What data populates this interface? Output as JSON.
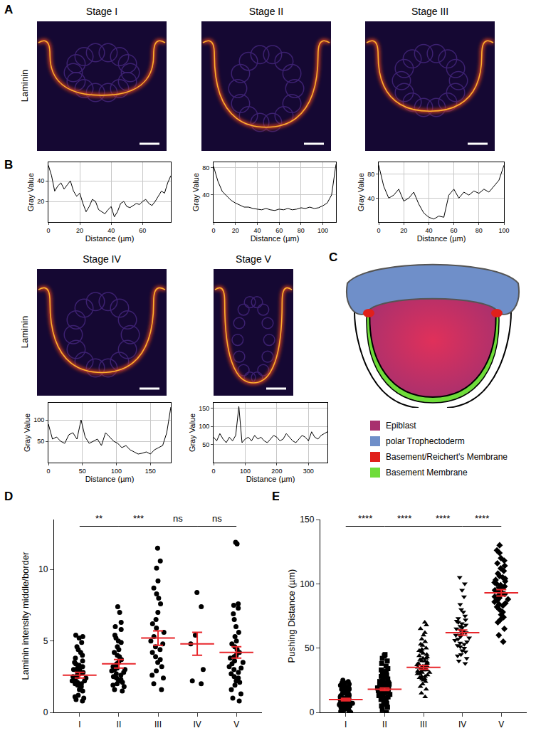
{
  "panel_labels": [
    "A",
    "B",
    "C",
    "D",
    "E"
  ],
  "stain_label": "Laminin",
  "images": [
    {
      "title": "Stage I"
    },
    {
      "title": "Stage II"
    },
    {
      "title": "Stage III"
    },
    {
      "title": "Stage IV"
    },
    {
      "title": "Stage V"
    }
  ],
  "schematic": {
    "legend": [
      {
        "label": "Epiblast",
        "color": "#a8306e"
      },
      {
        "label": "polar Trophectoderm",
        "color": "#6f8fc9"
      },
      {
        "label": "Basement/Reichert's Membrane",
        "color": "#e0201b"
      },
      {
        "label": "Basement Membrane",
        "color": "#6fdc3a"
      }
    ]
  },
  "chart_data": [
    {
      "type": "line",
      "xlabel": "Distance (µm)",
      "ylabel": "Gray Value",
      "color": "#000000",
      "grid": true,
      "x": [
        0,
        2,
        4,
        6,
        8,
        10,
        12,
        14,
        16,
        18,
        20,
        22,
        24,
        26,
        28,
        30,
        32,
        34,
        36,
        38,
        40,
        42,
        44,
        46,
        48,
        50,
        52,
        54,
        56,
        58,
        60,
        62,
        64,
        66,
        68,
        70,
        72,
        74,
        76,
        78
      ],
      "values": [
        55,
        45,
        30,
        35,
        38,
        32,
        36,
        40,
        30,
        25,
        28,
        18,
        10,
        15,
        22,
        20,
        12,
        10,
        8,
        12,
        15,
        5,
        10,
        18,
        20,
        15,
        14,
        16,
        18,
        17,
        20,
        22,
        18,
        16,
        20,
        25,
        30,
        28,
        38,
        45
      ],
      "xlim": [
        0,
        78
      ],
      "xticks": [
        0,
        20,
        40,
        60
      ],
      "ylim": [
        0,
        58
      ],
      "yticks": [
        20,
        40
      ]
    },
    {
      "type": "line",
      "xlabel": "Distance (µm)",
      "ylabel": "Gray Value",
      "color": "#000000",
      "grid": true,
      "x": [
        0,
        4,
        8,
        12,
        16,
        20,
        24,
        28,
        32,
        36,
        40,
        44,
        48,
        52,
        56,
        60,
        64,
        68,
        72,
        76,
        80,
        84,
        88,
        92,
        96,
        100,
        104,
        108,
        112
      ],
      "values": [
        82,
        60,
        45,
        38,
        32,
        28,
        25,
        22,
        22,
        20,
        19,
        18,
        20,
        18,
        17,
        19,
        18,
        20,
        18,
        19,
        21,
        20,
        22,
        20,
        21,
        24,
        28,
        40,
        85
      ],
      "xlim": [
        0,
        112
      ],
      "xticks": [
        0,
        20,
        40,
        60,
        80,
        100
      ],
      "ylim": [
        0,
        88
      ],
      "yticks": [
        40,
        80
      ]
    },
    {
      "type": "line",
      "xlabel": "Distance (µm)",
      "ylabel": "Gray Value",
      "color": "#000000",
      "grid": true,
      "x": [
        0,
        4,
        8,
        12,
        16,
        20,
        24,
        28,
        32,
        36,
        40,
        44,
        48,
        52,
        56,
        60,
        64,
        68,
        72,
        76,
        80,
        84,
        88,
        92,
        96,
        100
      ],
      "values": [
        95,
        60,
        40,
        45,
        55,
        35,
        40,
        50,
        30,
        15,
        8,
        5,
        10,
        8,
        45,
        55,
        40,
        50,
        45,
        52,
        48,
        55,
        50,
        60,
        70,
        95
      ],
      "xlim": [
        0,
        100
      ],
      "xticks": [
        0,
        20,
        40,
        60,
        80,
        100
      ],
      "ylim": [
        0,
        100
      ],
      "yticks": [
        40,
        80
      ]
    },
    {
      "type": "line",
      "xlabel": "Distance (µm)",
      "ylabel": "Gray Value",
      "color": "#000000",
      "grid": true,
      "x": [
        0,
        6,
        12,
        18,
        24,
        30,
        36,
        42,
        48,
        54,
        60,
        66,
        72,
        78,
        84,
        90,
        96,
        102,
        108,
        114,
        120,
        126,
        132,
        138,
        144,
        150,
        156,
        162,
        168,
        174,
        180
      ],
      "values": [
        90,
        55,
        60,
        50,
        45,
        65,
        70,
        55,
        100,
        60,
        45,
        50,
        55,
        40,
        70,
        60,
        50,
        45,
        35,
        40,
        30,
        25,
        20,
        22,
        25,
        20,
        30,
        35,
        40,
        70,
        130
      ],
      "xlim": [
        0,
        180
      ],
      "xticks": [
        0,
        50,
        100,
        150
      ],
      "ylim": [
        0,
        140
      ],
      "yticks": [
        50,
        100
      ]
    },
    {
      "type": "line",
      "xlabel": "Distance (µm)",
      "ylabel": "Gray Value",
      "color": "#000000",
      "grid": true,
      "x": [
        0,
        10,
        20,
        30,
        40,
        50,
        60,
        70,
        80,
        90,
        100,
        110,
        120,
        130,
        140,
        150,
        160,
        170,
        180,
        190,
        200,
        210,
        220,
        230,
        240,
        250,
        260,
        270,
        280,
        290,
        300,
        310,
        320,
        330,
        340,
        350,
        360
      ],
      "values": [
        70,
        60,
        80,
        65,
        55,
        70,
        60,
        75,
        155,
        55,
        65,
        70,
        60,
        75,
        65,
        70,
        60,
        55,
        65,
        75,
        70,
        60,
        65,
        80,
        70,
        60,
        55,
        65,
        75,
        70,
        60,
        85,
        70,
        65,
        75,
        80,
        85
      ],
      "xlim": [
        0,
        360
      ],
      "xticks": [
        0,
        100,
        200,
        300
      ],
      "ylim": [
        0,
        165
      ],
      "yticks": [
        50,
        100,
        150
      ]
    },
    {
      "type": "strip",
      "ylabel": "Laminin intensity middle/border",
      "categories": [
        "I",
        "II",
        "III",
        "IV",
        "V"
      ],
      "ylim": [
        0,
        13.5
      ],
      "yticks": [
        0,
        5,
        10
      ],
      "series": [
        {
          "type": "points",
          "color": "#000000",
          "markers": [
            "circle",
            "circle",
            "circle",
            "circle",
            "circle"
          ],
          "values": [
            [
              0.8,
              0.9,
              1.0,
              1.1,
              1.2,
              1.5,
              1.6,
              1.8,
              1.9,
              2.0,
              2.0,
              2.1,
              2.2,
              2.2,
              2.3,
              2.4,
              2.5,
              2.5,
              2.6,
              2.7,
              2.8,
              2.8,
              2.9,
              3.0,
              3.0,
              3.1,
              3.2,
              3.3,
              3.4,
              3.5,
              3.6,
              3.8,
              4.0,
              4.2,
              4.4,
              4.6,
              4.9,
              5.2,
              5.3,
              5.4
            ],
            [
              1.5,
              1.6,
              1.8,
              1.9,
              2.0,
              2.1,
              2.2,
              2.3,
              2.4,
              2.5,
              2.6,
              2.7,
              2.8,
              2.9,
              3.0,
              3.0,
              3.1,
              3.2,
              3.4,
              3.5,
              3.7,
              3.9,
              4.0,
              4.2,
              4.4,
              4.6,
              4.9,
              5.0,
              5.2,
              5.4,
              5.8,
              6.0,
              6.3,
              7.0,
              7.4
            ],
            [
              1.6,
              2.0,
              2.4,
              2.6,
              2.9,
              3.2,
              3.5,
              3.7,
              3.9,
              4.2,
              4.4,
              4.6,
              4.8,
              5.0,
              5.3,
              5.6,
              5.9,
              6.2,
              6.5,
              7.0,
              7.6,
              8.0,
              8.3,
              8.7,
              9.2,
              10.1,
              10.6,
              11.5
            ],
            [
              8.4,
              7.4,
              5.4,
              4.8,
              3.0,
              2.2,
              2.0
            ],
            [
              0.8,
              1.0,
              1.3,
              1.6,
              1.9,
              2.1,
              2.2,
              2.4,
              2.5,
              2.7,
              2.8,
              3.0,
              3.1,
              3.2,
              3.4,
              3.5,
              3.6,
              3.8,
              3.9,
              4.0,
              4.2,
              4.4,
              4.6,
              4.8,
              5.0,
              5.3,
              5.6,
              6.0,
              6.5,
              6.9,
              7.3,
              7.5,
              7.6,
              11.8,
              11.9
            ]
          ]
        },
        {
          "type": "mean_sem",
          "color": "#e8262b",
          "values": [
            2.6,
            3.4,
            5.2,
            4.8,
            4.2
          ],
          "sem": [
            0.2,
            0.3,
            0.5,
            0.8,
            0.4
          ]
        }
      ],
      "significance": [
        {
          "from": "I",
          "to": "II",
          "label": "**"
        },
        {
          "from": "II",
          "to": "III",
          "label": "***"
        },
        {
          "from": "III",
          "to": "IV",
          "label": "ns"
        },
        {
          "from": "IV",
          "to": "V",
          "label": "ns"
        }
      ]
    },
    {
      "type": "strip",
      "ylabel": "Pushing Distance (µm)",
      "categories": [
        "I",
        "II",
        "III",
        "IV",
        "V"
      ],
      "ylim": [
        0,
        150
      ],
      "yticks": [
        0,
        50,
        100,
        150
      ],
      "series": [
        {
          "type": "points",
          "color": "#000000",
          "markers": [
            "circle",
            "square",
            "triangle-up",
            "triangle-down",
            "diamond"
          ],
          "values": [
            [
              0,
              0,
              0,
              1,
              2,
              2,
              3,
              3,
              4,
              4,
              5,
              5,
              5,
              6,
              6,
              7,
              7,
              7,
              8,
              8,
              8,
              9,
              9,
              10,
              10,
              10,
              11,
              11,
              12,
              12,
              13,
              13,
              14,
              14,
              15,
              15,
              16,
              17,
              18,
              18,
              19,
              20,
              20,
              21,
              22,
              22,
              23,
              23,
              24,
              25
            ],
            [
              0,
              2,
              4,
              5,
              6,
              7,
              8,
              9,
              10,
              10,
              11,
              12,
              12,
              13,
              13,
              14,
              14,
              15,
              15,
              15,
              16,
              16,
              17,
              17,
              18,
              18,
              18,
              19,
              19,
              20,
              20,
              21,
              21,
              22,
              22,
              23,
              23,
              24,
              24,
              25,
              26,
              27,
              28,
              29,
              30,
              31,
              32,
              33,
              34,
              36,
              38,
              40,
              42,
              44,
              45,
              22,
              20,
              19,
              17,
              16
            ],
            [
              12,
              15,
              18,
              20,
              22,
              24,
              25,
              26,
              27,
              28,
              29,
              30,
              30,
              31,
              31,
              32,
              32,
              33,
              33,
              34,
              34,
              35,
              35,
              36,
              36,
              37,
              38,
              38,
              39,
              40,
              40,
              41,
              42,
              43,
              44,
              45,
              46,
              47,
              48,
              49,
              50,
              52,
              53,
              55,
              57,
              60,
              62,
              65,
              68,
              70,
              28,
              26,
              35,
              37,
              42
            ],
            [
              38,
              40,
              42,
              44,
              45,
              47,
              48,
              50,
              51,
              52,
              53,
              54,
              55,
              56,
              57,
              58,
              59,
              60,
              60,
              61,
              62,
              63,
              64,
              65,
              66,
              67,
              68,
              69,
              70,
              71,
              72,
              73,
              75,
              78,
              80,
              84,
              90,
              95,
              100,
              105
            ],
            [
              55,
              60,
              65,
              70,
              72,
              74,
              76,
              78,
              80,
              82,
              83,
              84,
              85,
              86,
              87,
              88,
              89,
              90,
              91,
              92,
              92,
              93,
              94,
              95,
              96,
              97,
              98,
              99,
              100,
              101,
              102,
              103,
              104,
              105,
              106,
              108,
              110,
              112,
              114,
              116,
              118,
              120,
              124,
              126,
              130
            ]
          ]
        },
        {
          "type": "mean_sem",
          "color": "#e8262b",
          "values": [
            10,
            18,
            35,
            62,
            93
          ],
          "sem": [
            1,
            1,
            1.5,
            2,
            2.5
          ]
        }
      ],
      "significance": [
        {
          "from": "I",
          "to": "II",
          "label": "****"
        },
        {
          "from": "II",
          "to": "III",
          "label": "****"
        },
        {
          "from": "III",
          "to": "IV",
          "label": "****"
        },
        {
          "from": "IV",
          "to": "V",
          "label": "****"
        }
      ]
    }
  ]
}
